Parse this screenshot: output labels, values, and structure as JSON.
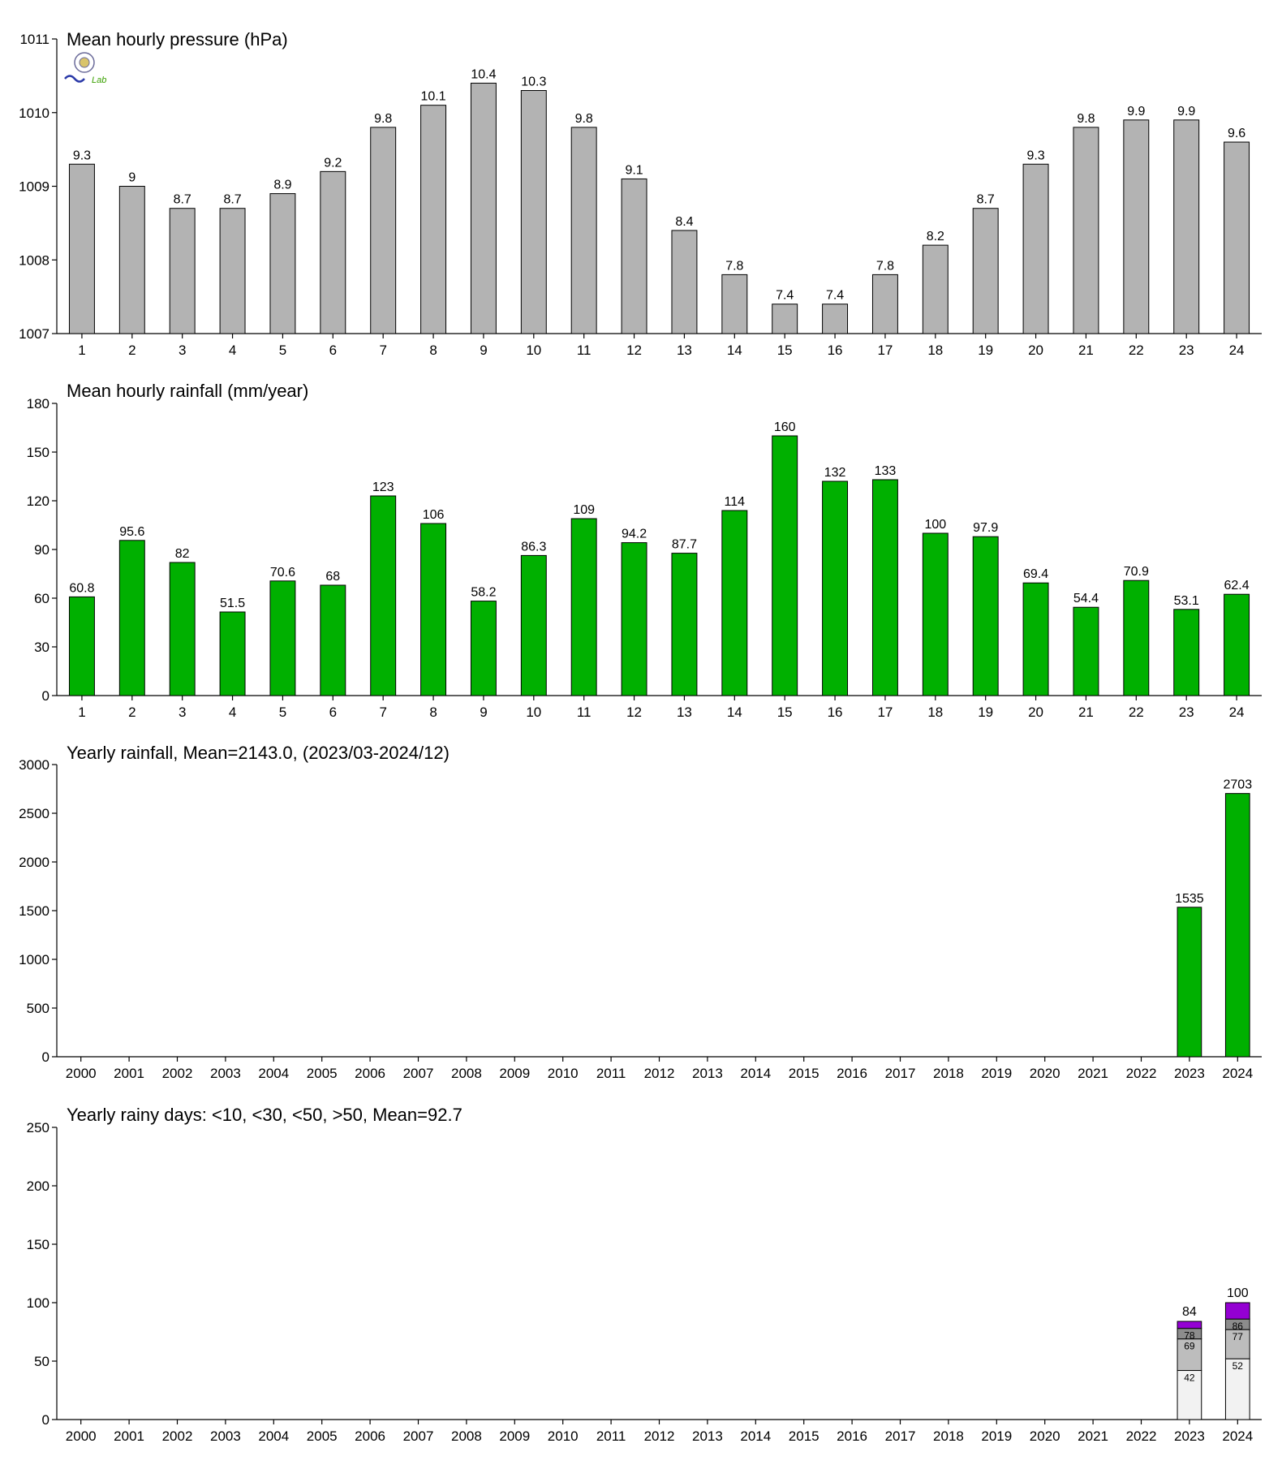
{
  "logo": {
    "text": "Lab"
  },
  "chart_data": [
    {
      "type": "bar",
      "title": "Mean hourly pressure (hPa)",
      "categories": [
        "1",
        "2",
        "3",
        "4",
        "5",
        "6",
        "7",
        "8",
        "9",
        "10",
        "11",
        "12",
        "13",
        "14",
        "15",
        "16",
        "17",
        "18",
        "19",
        "20",
        "21",
        "22",
        "23",
        "24"
      ],
      "values": [
        1009.3,
        1009.0,
        1008.7,
        1008.7,
        1008.9,
        1009.2,
        1009.8,
        1010.1,
        1010.4,
        1010.3,
        1009.8,
        1009.1,
        1008.4,
        1007.8,
        1007.4,
        1007.4,
        1007.8,
        1008.2,
        1008.7,
        1009.3,
        1009.8,
        1009.9,
        1009.9,
        1009.6
      ],
      "labels": [
        "9.3",
        "9",
        "8.7",
        "8.7",
        "8.9",
        "9.2",
        "9.8",
        "10.1",
        "10.4",
        "10.3",
        "9.8",
        "9.1",
        "8.4",
        "7.8",
        "7.4",
        "7.4",
        "7.8",
        "8.2",
        "8.7",
        "9.3",
        "9.8",
        "9.9",
        "9.9",
        "9.6"
      ],
      "yticks": [
        "1007",
        "1008",
        "1009",
        "1010",
        "1011"
      ],
      "ylim": [
        1007,
        1011
      ],
      "color": "#b3b3b3"
    },
    {
      "type": "bar",
      "title": "Mean hourly rainfall (mm/year)",
      "categories": [
        "1",
        "2",
        "3",
        "4",
        "5",
        "6",
        "7",
        "8",
        "9",
        "10",
        "11",
        "12",
        "13",
        "14",
        "15",
        "16",
        "17",
        "18",
        "19",
        "20",
        "21",
        "22",
        "23",
        "24"
      ],
      "values": [
        60.8,
        95.6,
        82,
        51.5,
        70.6,
        68,
        123,
        106,
        58.2,
        86.3,
        109,
        94.2,
        87.7,
        114,
        160,
        132,
        133,
        100,
        97.9,
        69.4,
        54.4,
        70.9,
        53.1,
        62.4
      ],
      "labels": [
        "60.8",
        "95.6",
        "82",
        "51.5",
        "70.6",
        "68",
        "123",
        "106",
        "58.2",
        "86.3",
        "109",
        "94.2",
        "87.7",
        "114",
        "160",
        "132",
        "133",
        "100",
        "97.9",
        "69.4",
        "54.4",
        "70.9",
        "53.1",
        "62.4"
      ],
      "yticks": [
        "0",
        "30",
        "60",
        "90",
        "120",
        "150",
        "180"
      ],
      "ylim": [
        0,
        180
      ],
      "color": "#00b000"
    },
    {
      "type": "bar",
      "title": "Yearly rainfall, Mean=2143.0, (2023/03-2024/12)",
      "categories": [
        "2000",
        "2001",
        "2002",
        "2003",
        "2004",
        "2005",
        "2006",
        "2007",
        "2008",
        "2009",
        "2010",
        "2011",
        "2012",
        "2013",
        "2014",
        "2015",
        "2016",
        "2017",
        "2018",
        "2019",
        "2020",
        "2021",
        "2022",
        "2023",
        "2024"
      ],
      "values": [
        null,
        null,
        null,
        null,
        null,
        null,
        null,
        null,
        null,
        null,
        null,
        null,
        null,
        null,
        null,
        null,
        null,
        null,
        null,
        null,
        null,
        null,
        null,
        1535,
        2703
      ],
      "labels": [
        "",
        "",
        "",
        "",
        "",
        "",
        "",
        "",
        "",
        "",
        "",
        "",
        "",
        "",
        "",
        "",
        "",
        "",
        "",
        "",
        "",
        "",
        "",
        "1535",
        "2703"
      ],
      "yticks": [
        "0",
        "500",
        "1000",
        "1500",
        "2000",
        "2500",
        "3000"
      ],
      "ylim": [
        0,
        3000
      ],
      "color": "#00b000"
    },
    {
      "type": "bar",
      "stacked": true,
      "title": "Yearly rainy days: <10, <30, <50, >50, Mean=92.7",
      "categories": [
        "2000",
        "2001",
        "2002",
        "2003",
        "2004",
        "2005",
        "2006",
        "2007",
        "2008",
        "2009",
        "2010",
        "2011",
        "2012",
        "2013",
        "2014",
        "2015",
        "2016",
        "2017",
        "2018",
        "2019",
        "2020",
        "2021",
        "2022",
        "2023",
        "2024"
      ],
      "stacks": [
        {
          "category": "2023",
          "cumulative": [
            42,
            69,
            78,
            84
          ],
          "labels": [
            "42",
            "69",
            "78",
            "84"
          ]
        },
        {
          "category": "2024",
          "cumulative": [
            52,
            77,
            86,
            100
          ],
          "labels": [
            "52",
            "77",
            "86",
            "100"
          ]
        }
      ],
      "stack_colors": [
        "#f2f2f2",
        "#bdbdbd",
        "#8c8c8c",
        "#9400d3"
      ],
      "yticks": [
        "0",
        "50",
        "100",
        "150",
        "200",
        "250"
      ],
      "ylim": [
        0,
        250
      ]
    }
  ]
}
